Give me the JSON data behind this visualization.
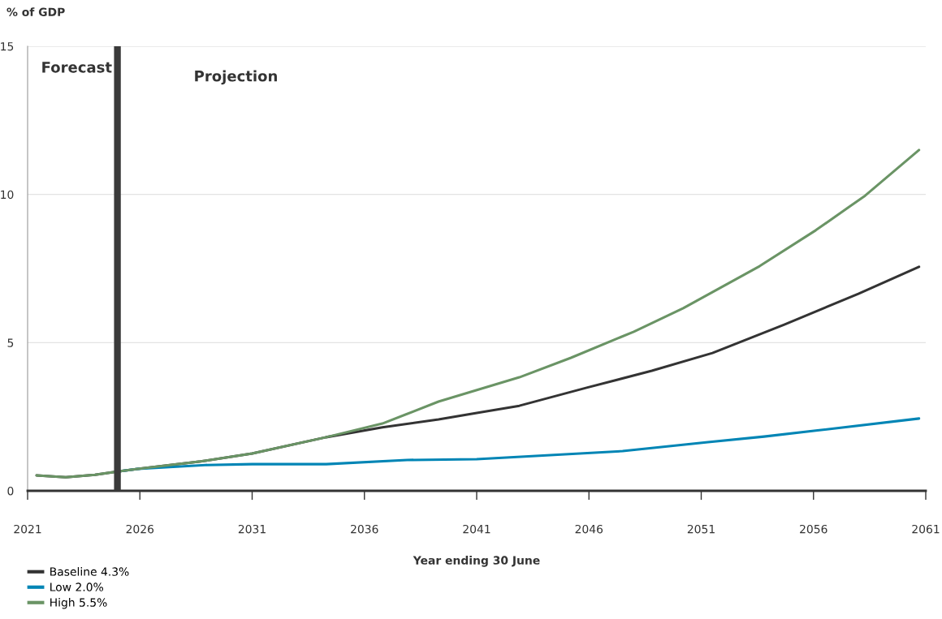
{
  "chart_data": {
    "type": "line",
    "ylabel": "% of GDP",
    "xlabel": "Year ending 30 June",
    "xlim": [
      2021,
      2061
    ],
    "xticks": [
      2021,
      2026,
      2031,
      2036,
      2041,
      2046,
      2051,
      2056,
      2061
    ],
    "ylim": [
      0,
      15
    ],
    "yticks": [
      0,
      5,
      10,
      15
    ],
    "grid": "y",
    "legend": "bottom left",
    "line_style": "solid",
    "marker": "none",
    "ref_lines": [
      {
        "axis": "x",
        "value": 2025,
        "label": null,
        "color": "#3a3a3a"
      }
    ],
    "annotations": [
      "Forecast",
      "Projection"
    ],
    "series": [
      {
        "name": "Baseline 4.3%",
        "color": "#333333",
        "x": [
          2021.4,
          2022.7,
          2024,
          2025,
          2025.9,
          2028.7,
          2031,
          2034.3,
          2036.8,
          2039.3,
          2042.9,
          2045.9,
          2048.8,
          2051.5,
          2054.7,
          2058,
          2060.7
        ],
        "values": [
          0.52,
          0.46,
          0.54,
          0.65,
          0.74,
          0.99,
          1.26,
          1.81,
          2.14,
          2.41,
          2.87,
          3.48,
          4.05,
          4.65,
          5.61,
          6.65,
          7.56
        ]
      },
      {
        "name": "Low 2.0%",
        "color": "#0085b5",
        "x": [
          2025,
          2025.9,
          2028.9,
          2031,
          2034.3,
          2037.9,
          2041,
          2047.5,
          2051.3,
          2053.8,
          2056.1,
          2060.7
        ],
        "values": [
          0.65,
          0.74,
          0.87,
          0.9,
          0.9,
          1.04,
          1.07,
          1.34,
          1.64,
          1.83,
          2.03,
          2.44
        ]
      },
      {
        "name": "High 5.5%",
        "color": "#6a9465",
        "x": [
          2021.4,
          2022.7,
          2024,
          2025,
          2025.9,
          2028.7,
          2031,
          2034.3,
          2036.8,
          2039.3,
          2042.9,
          2045.2,
          2048,
          2050.2,
          2053.6,
          2056.1,
          2058.3,
          2060.7
        ],
        "values": [
          0.52,
          0.46,
          0.54,
          0.65,
          0.74,
          0.99,
          1.26,
          1.81,
          2.27,
          3.01,
          3.83,
          4.49,
          5.37,
          6.16,
          7.58,
          8.79,
          9.96,
          11.5
        ]
      }
    ]
  }
}
